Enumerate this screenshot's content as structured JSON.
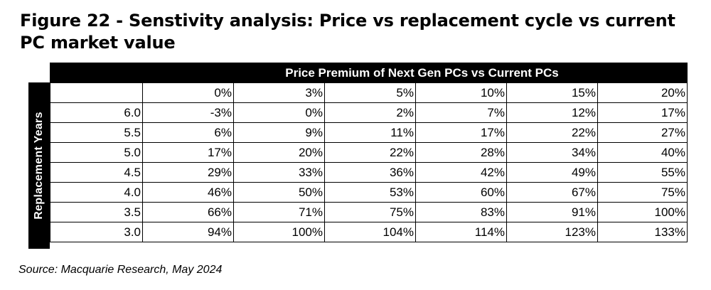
{
  "title": "Figure 22 - Senstivity analysis: Price vs replacement cycle vs current PC market value",
  "table": {
    "header": "Price Premium of Next Gen PCs vs Current PCs",
    "row_axis_label": "Replacement  Years",
    "columns": [
      "0%",
      "3%",
      "5%",
      "10%",
      "15%",
      "20%"
    ],
    "rows": [
      {
        "label": "6.0",
        "values": [
          "-3%",
          "0%",
          "2%",
          "7%",
          "12%",
          "17%"
        ]
      },
      {
        "label": "5.5",
        "values": [
          "6%",
          "9%",
          "11%",
          "17%",
          "22%",
          "27%"
        ]
      },
      {
        "label": "5.0",
        "values": [
          "17%",
          "20%",
          "22%",
          "28%",
          "34%",
          "40%"
        ]
      },
      {
        "label": "4.5",
        "values": [
          "29%",
          "33%",
          "36%",
          "42%",
          "49%",
          "55%"
        ]
      },
      {
        "label": "4.0",
        "values": [
          "46%",
          "50%",
          "53%",
          "60%",
          "67%",
          "75%"
        ]
      },
      {
        "label": "3.5",
        "values": [
          "66%",
          "71%",
          "75%",
          "83%",
          "91%",
          "100%"
        ]
      },
      {
        "label": "3.0",
        "values": [
          "94%",
          "100%",
          "104%",
          "114%",
          "123%",
          "133%"
        ]
      }
    ]
  },
  "source": "Source: Macquarie Research, May 2024"
}
